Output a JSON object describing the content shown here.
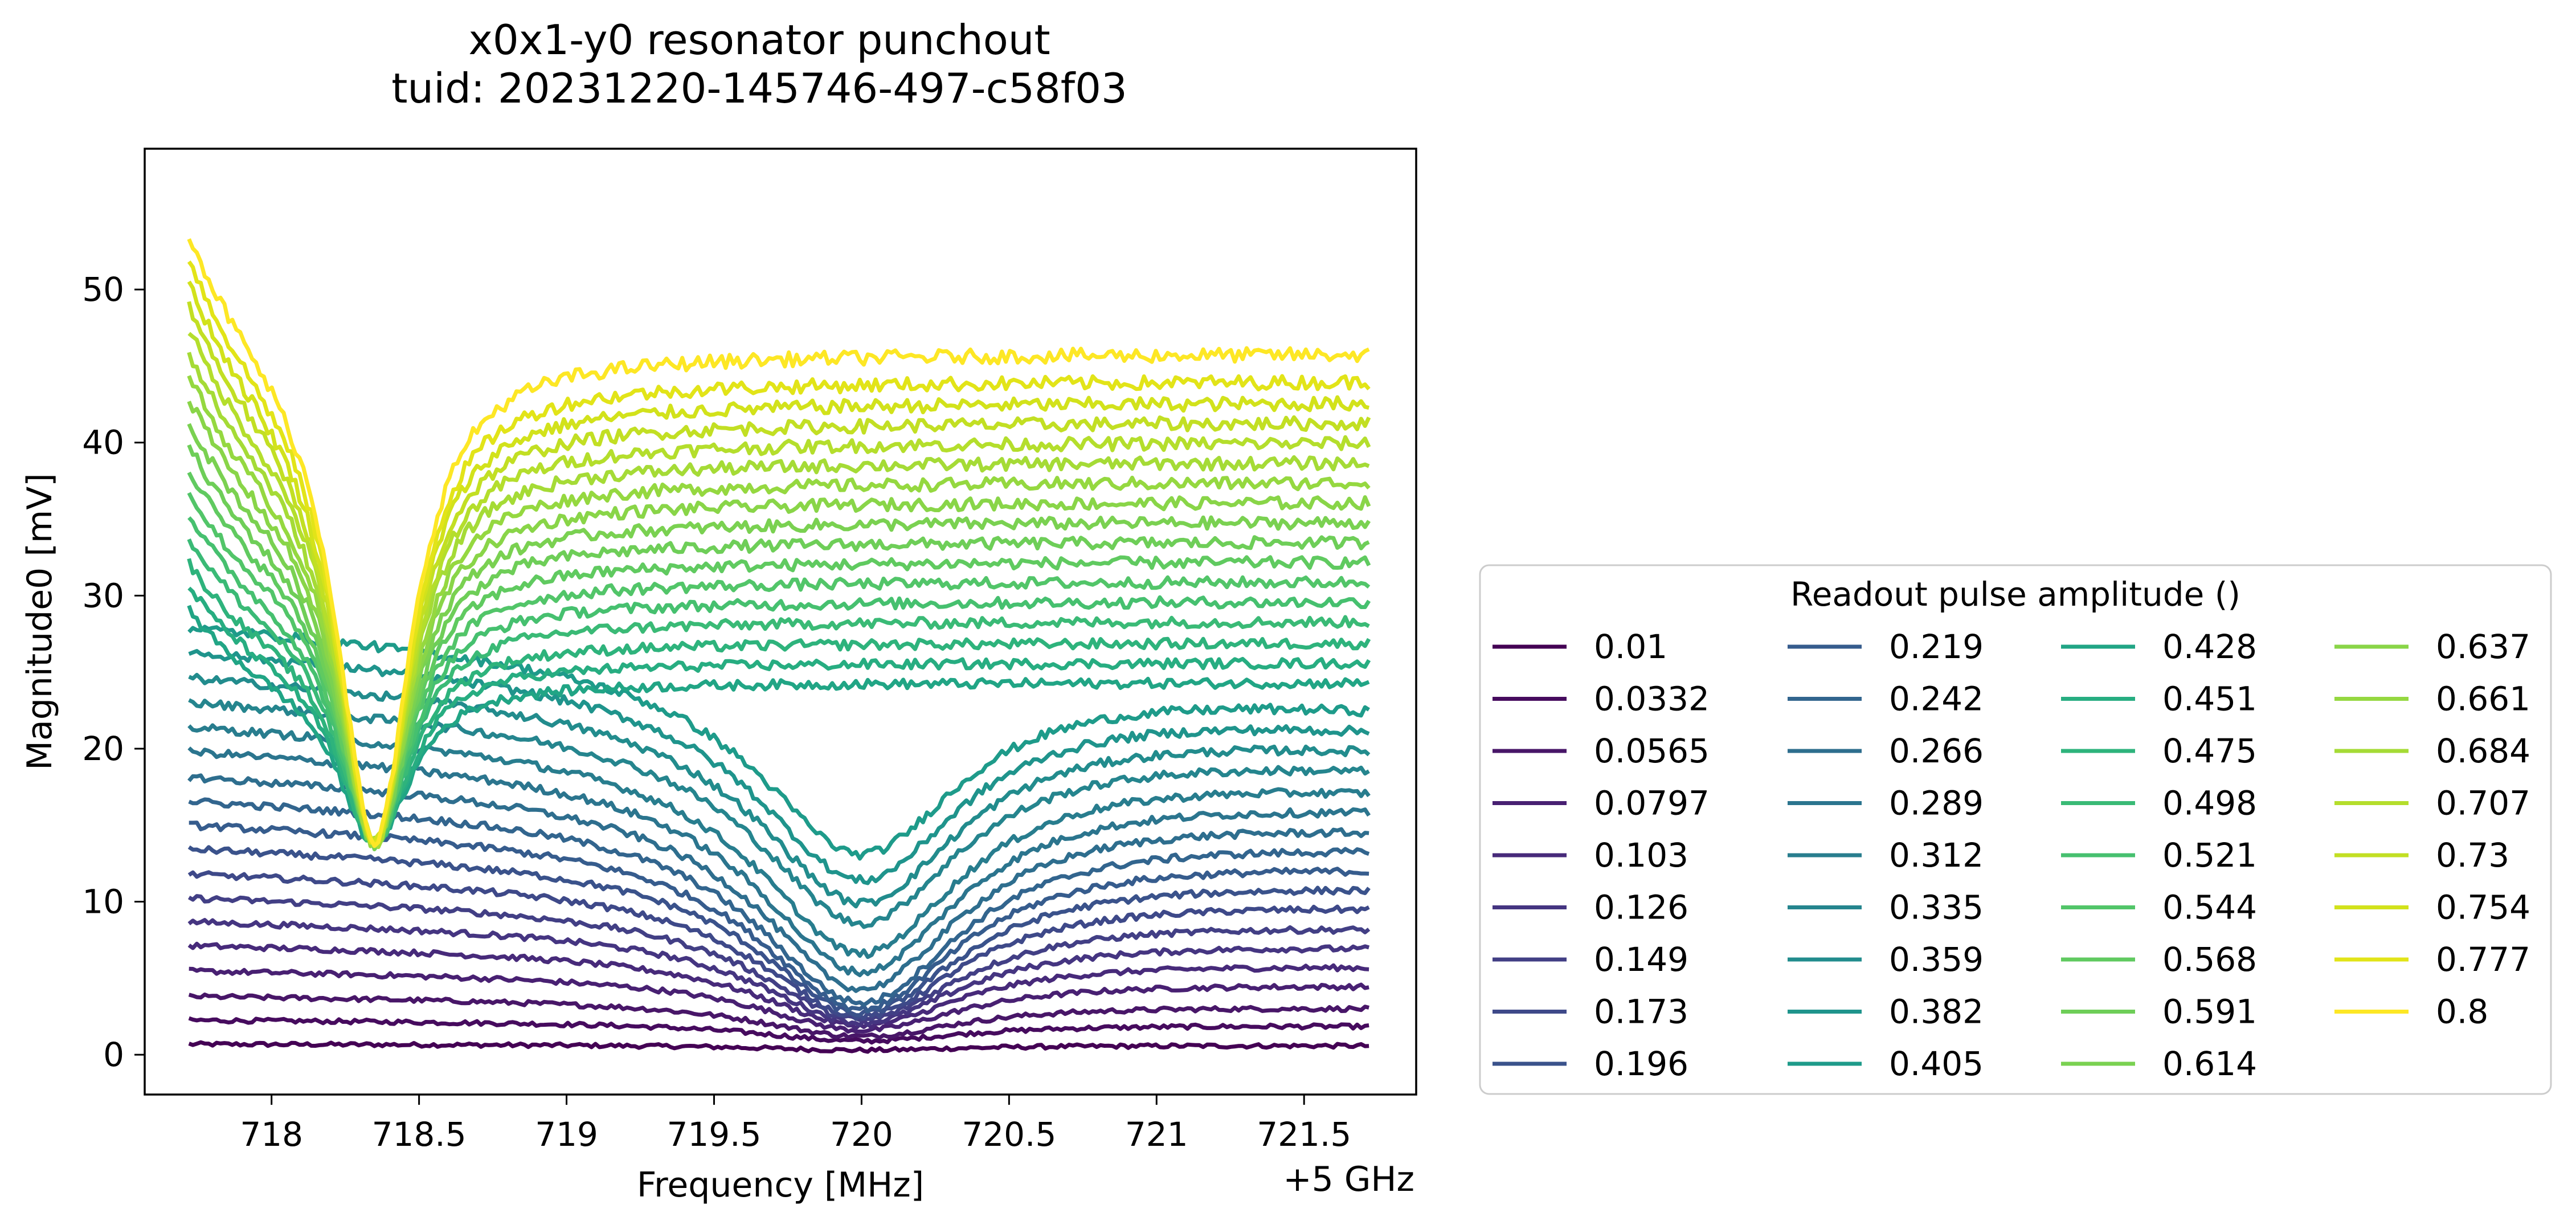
{
  "chart_data": {
    "type": "line",
    "title": "x0x1-y0 resonator punchout",
    "subtitle": "tuid: 20231220-145746-497-c58f03",
    "xlabel": "Frequency [MHz]",
    "ylabel": "Magnitude0 [mV]",
    "x_offset_label": "+5 GHz",
    "xlim": [
      717.57,
      721.88
    ],
    "ylim": [
      -2.6,
      59.2
    ],
    "x_range": [
      717.72,
      721.72
    ],
    "xticks": [
      718,
      718.5,
      719,
      719.5,
      720,
      720.5,
      721,
      721.5
    ],
    "xtick_labels": [
      "718",
      "718.5",
      "719",
      "719.5",
      "720",
      "720.5",
      "721",
      "721.5"
    ],
    "yticks": [
      0,
      10,
      20,
      30,
      40,
      50
    ],
    "ytick_labels": [
      "0",
      "10",
      "20",
      "30",
      "40",
      "50"
    ],
    "grid": false,
    "colormap": "viridis",
    "legend": {
      "title": "Readout pulse amplitude ()",
      "placement": "lower-right-outside",
      "columns": 4
    },
    "series": [
      {
        "name": "0.01",
        "amplitude": 0.01,
        "color": "#440154",
        "left_value": 0.7,
        "right_value": 0.6,
        "res_freq": 720.0,
        "dip_value": 0.3
      },
      {
        "name": "0.0332",
        "amplitude": 0.0332,
        "color": "#460b5e",
        "left_value": 2.3,
        "right_value": 1.9,
        "res_freq": 720.0,
        "dip_value": 0.9
      },
      {
        "name": "0.0565",
        "amplitude": 0.0565,
        "color": "#481668",
        "left_value": 3.9,
        "right_value": 3.1,
        "res_freq": 720.0,
        "dip_value": 1.2
      },
      {
        "name": "0.0797",
        "amplitude": 0.0797,
        "color": "#482072",
        "left_value": 5.6,
        "right_value": 4.6,
        "res_freq": 720.0,
        "dip_value": 1.6
      },
      {
        "name": "0.103",
        "amplitude": 0.103,
        "color": "#472a7a",
        "left_value": 7.3,
        "right_value": 5.9,
        "res_freq": 720.0,
        "dip_value": 1.9
      },
      {
        "name": "0.126",
        "amplitude": 0.126,
        "color": "#453581",
        "left_value": 8.9,
        "right_value": 7.2,
        "res_freq": 720.0,
        "dip_value": 2.1
      },
      {
        "name": "0.149",
        "amplitude": 0.149,
        "color": "#423f85",
        "left_value": 10.5,
        "right_value": 8.5,
        "res_freq": 720.0,
        "dip_value": 2.3
      },
      {
        "name": "0.173",
        "amplitude": 0.173,
        "color": "#3e4989",
        "left_value": 12.1,
        "right_value": 9.9,
        "res_freq": 720.0,
        "dip_value": 2.5
      },
      {
        "name": "0.196",
        "amplitude": 0.196,
        "color": "#3a528b",
        "left_value": 13.8,
        "right_value": 11.2,
        "res_freq": 720.0,
        "dip_value": 2.7
      },
      {
        "name": "0.219",
        "amplitude": 0.219,
        "color": "#365c8d",
        "left_value": 15.4,
        "right_value": 12.5,
        "res_freq": 720.0,
        "dip_value": 3.0
      },
      {
        "name": "0.242",
        "amplitude": 0.242,
        "color": "#32658e",
        "left_value": 17.0,
        "right_value": 13.8,
        "res_freq": 720.0,
        "dip_value": 3.4
      },
      {
        "name": "0.266",
        "amplitude": 0.266,
        "color": "#2e6e8e",
        "left_value": 18.6,
        "right_value": 15.1,
        "res_freq": 720.0,
        "dip_value": 4.3
      },
      {
        "name": "0.289",
        "amplitude": 0.289,
        "color": "#2b758e",
        "left_value": 20.3,
        "right_value": 16.4,
        "res_freq": 720.0,
        "dip_value": 5.4
      },
      {
        "name": "0.312",
        "amplitude": 0.312,
        "color": "#287d8e",
        "left_value": 21.9,
        "right_value": 17.7,
        "res_freq": 720.0,
        "dip_value": 6.6
      },
      {
        "name": "0.335",
        "amplitude": 0.335,
        "color": "#25858e",
        "left_value": 23.5,
        "right_value": 19.1,
        "res_freq": 720.0,
        "dip_value": 8.6
      },
      {
        "name": "0.359",
        "amplitude": 0.359,
        "color": "#228c8d",
        "left_value": 25.1,
        "right_value": 20.4,
        "res_freq": 720.0,
        "dip_value": 9.9
      },
      {
        "name": "0.382",
        "amplitude": 0.382,
        "color": "#1f948c",
        "left_value": 26.8,
        "right_value": 21.7,
        "res_freq": 720.0,
        "dip_value": 11.4
      },
      {
        "name": "0.405",
        "amplitude": 0.405,
        "color": "#1e9b8a",
        "left_value": 28.4,
        "right_value": 23.0,
        "res_freq": 720.0,
        "dip_value": 13.1
      },
      {
        "name": "0.428",
        "amplitude": 0.428,
        "color": "#21a585",
        "left_value": 30.0,
        "right_value": 24.3,
        "res_freq": 718.35,
        "dip_value": 13.8
      },
      {
        "name": "0.451",
        "amplitude": 0.451,
        "color": "#27ad81",
        "left_value": 31.6,
        "right_value": 25.6,
        "res_freq": 718.35,
        "dip_value": 13.8
      },
      {
        "name": "0.475",
        "amplitude": 0.475,
        "color": "#2eb37c",
        "left_value": 33.2,
        "right_value": 26.9,
        "res_freq": 718.35,
        "dip_value": 13.8
      },
      {
        "name": "0.498",
        "amplitude": 0.498,
        "color": "#3aba76",
        "left_value": 34.9,
        "right_value": 28.3,
        "res_freq": 718.35,
        "dip_value": 13.8
      },
      {
        "name": "0.521",
        "amplitude": 0.521,
        "color": "#46c06f",
        "left_value": 36.5,
        "right_value": 29.6,
        "res_freq": 718.35,
        "dip_value": 13.8
      },
      {
        "name": "0.544",
        "amplitude": 0.544,
        "color": "#52c569",
        "left_value": 38.1,
        "right_value": 30.9,
        "res_freq": 718.35,
        "dip_value": 13.8
      },
      {
        "name": "0.568",
        "amplitude": 0.568,
        "color": "#60ca60",
        "left_value": 39.7,
        "right_value": 32.2,
        "res_freq": 718.35,
        "dip_value": 13.8
      },
      {
        "name": "0.591",
        "amplitude": 0.591,
        "color": "#6ece58",
        "left_value": 41.3,
        "right_value": 33.5,
        "res_freq": 718.35,
        "dip_value": 13.8
      },
      {
        "name": "0.614",
        "amplitude": 0.614,
        "color": "#7ad151",
        "left_value": 43.0,
        "right_value": 34.8,
        "res_freq": 718.35,
        "dip_value": 13.8
      },
      {
        "name": "0.637",
        "amplitude": 0.637,
        "color": "#89d548",
        "left_value": 44.6,
        "right_value": 36.1,
        "res_freq": 718.35,
        "dip_value": 13.8
      },
      {
        "name": "0.661",
        "amplitude": 0.661,
        "color": "#95d840",
        "left_value": 46.2,
        "right_value": 37.4,
        "res_freq": 718.35,
        "dip_value": 13.8
      },
      {
        "name": "0.684",
        "amplitude": 0.684,
        "color": "#a5db36",
        "left_value": 47.8,
        "right_value": 38.7,
        "res_freq": 718.35,
        "dip_value": 13.8
      },
      {
        "name": "0.707",
        "amplitude": 0.707,
        "color": "#b4de2c",
        "left_value": 49.4,
        "right_value": 40.0,
        "res_freq": 718.35,
        "dip_value": 13.8
      },
      {
        "name": "0.73",
        "amplitude": 0.73,
        "color": "#c2df23",
        "left_value": 51.1,
        "right_value": 41.3,
        "res_freq": 718.35,
        "dip_value": 13.8
      },
      {
        "name": "0.754",
        "amplitude": 0.754,
        "color": "#d2e21b",
        "left_value": 52.7,
        "right_value": 42.6,
        "res_freq": 718.35,
        "dip_value": 13.8
      },
      {
        "name": "0.777",
        "amplitude": 0.777,
        "color": "#e2e418",
        "left_value": 54.3,
        "right_value": 44.0,
        "res_freq": 718.35,
        "dip_value": 13.8
      },
      {
        "name": "0.8",
        "amplitude": 0.8,
        "color": "#fde725",
        "left_value": 56.0,
        "right_value": 45.8,
        "res_freq": 718.35,
        "dip_value": 13.8
      }
    ]
  }
}
